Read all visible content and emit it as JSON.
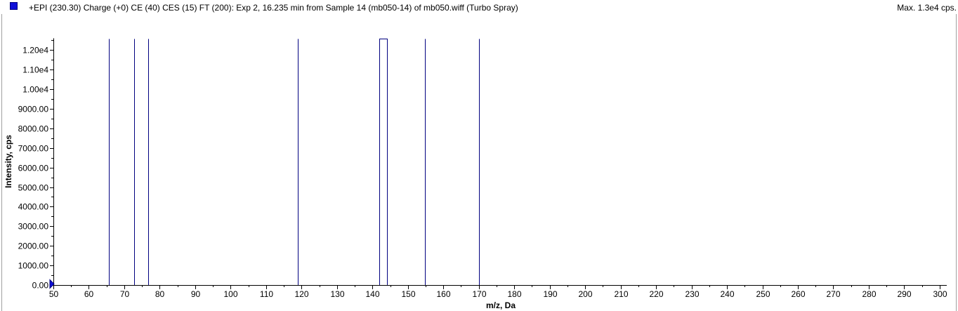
{
  "header": {
    "title": "+EPI (230.30) Charge (+0) CE (40) CES (15) FT (200): Exp 2, 16.235 min from Sample 14 (mb050-14) of mb050.wiff (Turbo Spray)",
    "max_label": "Max. 1.3e4 cps."
  },
  "colors": {
    "series": "#000080",
    "legend": "#1010d8",
    "border": "#a0a0a0"
  },
  "chart_data": {
    "type": "bar",
    "title": "+EPI (230.30) Charge (+0) CE (40) CES (15) FT (200): Exp 2, 16.235 min from Sample 14 (mb050-14) of mb050.wiff (Turbo Spray)",
    "xlabel": "m/z, Da",
    "ylabel": "Intensity, cps",
    "xlim": [
      50,
      302
    ],
    "ylim": [
      0,
      12600
    ],
    "x_ticks": [
      50,
      60,
      70,
      80,
      90,
      100,
      110,
      120,
      130,
      140,
      150,
      160,
      170,
      180,
      190,
      200,
      210,
      220,
      230,
      240,
      250,
      260,
      270,
      280,
      290,
      300
    ],
    "y_ticks": [
      {
        "value": 0,
        "label": "0.00"
      },
      {
        "value": 1000,
        "label": "1000.00"
      },
      {
        "value": 2000,
        "label": "2000.00"
      },
      {
        "value": 3000,
        "label": "3000.00"
      },
      {
        "value": 4000,
        "label": "4000.00"
      },
      {
        "value": 5000,
        "label": "5000.00"
      },
      {
        "value": 6000,
        "label": "6000.00"
      },
      {
        "value": 7000,
        "label": "7000.00"
      },
      {
        "value": 8000,
        "label": "8000.00"
      },
      {
        "value": 9000,
        "label": "9000.00"
      },
      {
        "value": 10000,
        "label": "1.00e4"
      },
      {
        "value": 11000,
        "label": "1.10e4"
      },
      {
        "value": 12000,
        "label": "1.20e4"
      }
    ],
    "peaks": [
      {
        "x": 65.6,
        "y": 12600
      },
      {
        "x": 72.8,
        "y": 12600
      },
      {
        "x": 76.8,
        "y": 12600
      },
      {
        "x": 118.9,
        "y": 12600
      },
      {
        "x": 142.0,
        "y": 12600
      },
      {
        "x": 144.1,
        "y": 12600
      },
      {
        "x": 154.9,
        "y": 12600
      },
      {
        "x": 170.0,
        "y": 12600
      }
    ],
    "grid": false,
    "legend": "top-left"
  }
}
